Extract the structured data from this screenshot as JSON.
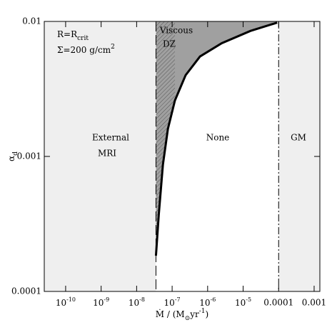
{
  "chart_data": {
    "type": "line",
    "xscale": "log",
    "yscale": "log",
    "xlim": [
      2.5e-11,
      0.00145
    ],
    "ylim": [
      0.0001,
      0.01
    ],
    "xticks": [
      {
        "value": 1e-10,
        "label": "10",
        "sup": "-10"
      },
      {
        "value": 1e-09,
        "label": "10",
        "sup": "-9"
      },
      {
        "value": 1e-08,
        "label": "10",
        "sup": "-8"
      },
      {
        "value": 1e-07,
        "label": "10",
        "sup": "-7"
      },
      {
        "value": 1e-06,
        "label": "10",
        "sup": "-6"
      },
      {
        "value": 1e-05,
        "label": "10",
        "sup": "-5"
      },
      0.0001,
      0.001
    ],
    "yticks": [
      0.0001,
      0.001,
      0.01
    ],
    "x_label": [
      {
        "text": "Ṁ / (M"
      },
      {
        "text": "⊙",
        "shift": "sub"
      },
      {
        "text": "yr"
      },
      {
        "text": "-1",
        "shift": "sup"
      },
      {
        "text": ")"
      }
    ],
    "y_label": [
      {
        "text": "α"
      },
      {
        "text": "d",
        "shift": "sub"
      }
    ],
    "annotations": [
      [
        {
          "text": "R=R"
        },
        {
          "text": "crit",
          "shift": "sub"
        }
      ],
      [
        {
          "text": "Σ=200 g/cm"
        },
        {
          "text": "2",
          "shift": "sup"
        }
      ]
    ],
    "regions": [
      {
        "name": [
          "External",
          "MRI"
        ],
        "from": 2.5e-11,
        "to": 3.5e-08,
        "color": "#efefef"
      },
      {
        "name": [
          "None"
        ],
        "from": 3.5e-08,
        "to": 0.0001,
        "color": "#ffffff"
      },
      {
        "name": [
          "GM"
        ],
        "from": 0.0001,
        "to": 0.00145,
        "color": "#efefef"
      }
    ],
    "dead_zone": {
      "name": [
        "Viscous",
        "DZ"
      ],
      "color": "#a0a0a0"
    },
    "series": [
      {
        "color": "#000000",
        "x": [
          3.5e-08,
          4.2e-08,
          5.5e-08,
          7.6e-08,
          1.2e-07,
          2.4e-07,
          6.1e-07,
          2.5e-06,
          1.6e-05,
          9.1e-05
        ],
        "values": [
          0.000184,
          0.00037,
          0.00087,
          0.0016,
          0.0026,
          0.004,
          0.0055,
          0.0069,
          0.0085,
          0.0098
        ]
      }
    ]
  }
}
